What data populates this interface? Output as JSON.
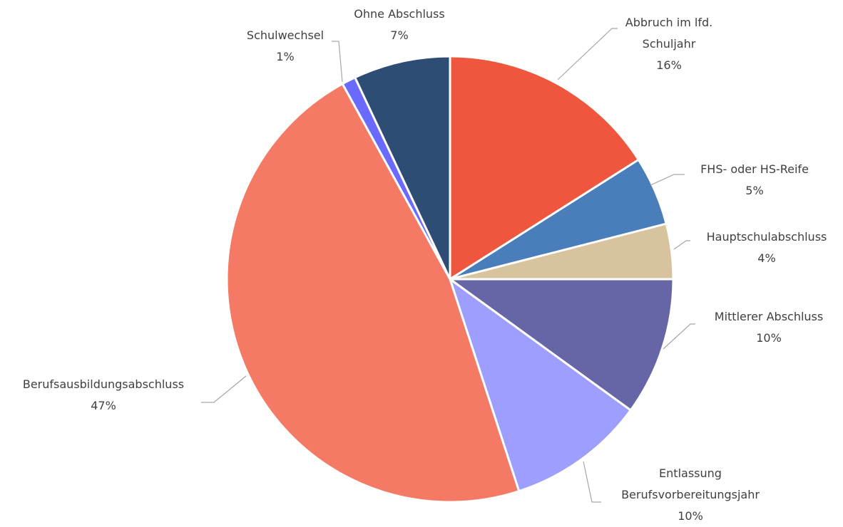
{
  "chart_data": {
    "type": "pie",
    "categories": [
      "Abbruch im lfd. Schuljahr",
      "FHS- oder HS-Reife",
      "Hauptschulabschluss",
      "Mittlerer Abschluss",
      "Entlassung Berufsvorbereitungsjahr",
      "Berufsausbildungsabschluss",
      "Schulwechsel",
      "Ohne Abschluss"
    ],
    "values": [
      16,
      5,
      4,
      10,
      10,
      47,
      1,
      7
    ],
    "value_labels": [
      "16%",
      "5%",
      "4%",
      "10%",
      "10%",
      "47%",
      "1%",
      "7%"
    ],
    "colors": [
      "#f0563d",
      "#4a7ebb",
      "#d7c49e",
      "#6666a6",
      "#9e9eff",
      "#f47a66",
      "#6a6aff",
      "#2e4d74"
    ]
  }
}
